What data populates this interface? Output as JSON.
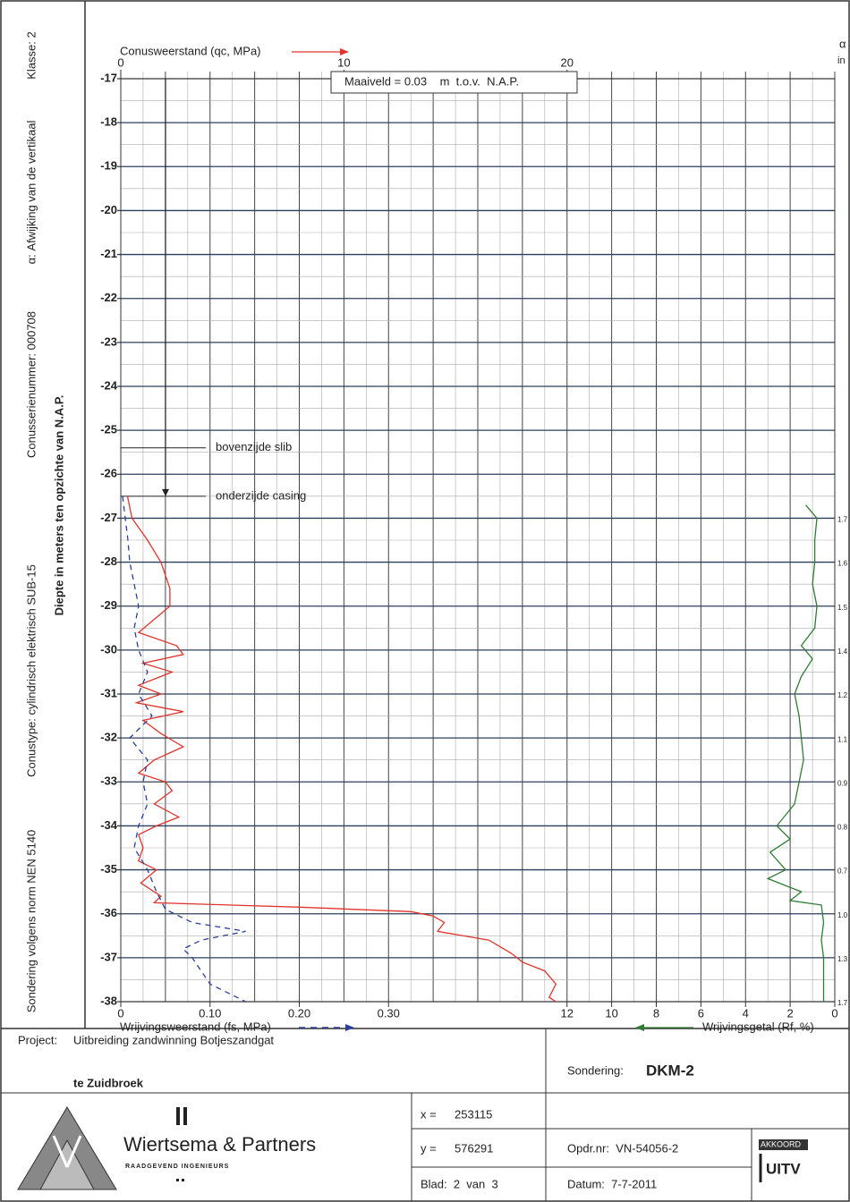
{
  "side_labels": [
    "Sondering volgens norm NEN 5140",
    "Conustype: cylindrisch elektrisch SUB-15",
    "Conusserienummer: 000708",
    "α: Afwijking van de vertikaal",
    "Klasse: 2",
    "Diepte in meters ten opzichte van N.A.P."
  ],
  "chart_data": {
    "type": "cpt",
    "ylim": [
      -17,
      -38
    ],
    "yticks": [
      -17,
      -18,
      -19,
      -20,
      -21,
      -22,
      -23,
      -24,
      -25,
      -26,
      -27,
      -28,
      -29,
      -30,
      -31,
      -32,
      -33,
      -34,
      -35,
      -36,
      -37,
      -38
    ],
    "maaiveld": "Maaiveld = 0.03    m  t.o.v.  N.A.P.",
    "annotations": [
      {
        "text": "bovenzijde slib",
        "depth": -25.4
      },
      {
        "text": "onderzijde casing",
        "depth": -26.5
      }
    ],
    "qc": {
      "label": "Conusweerstand (qc, MPa)",
      "xlim": [
        0,
        32
      ],
      "xticks": [
        0,
        10,
        20
      ],
      "color": "#e0342c",
      "depth": [
        -26.5,
        -27,
        -27.5,
        -28,
        -28.3,
        -28.6,
        -29,
        -29.3,
        -29.6,
        -29.9,
        -30.1,
        -30.3,
        -30.5,
        -30.8,
        -31,
        -31.2,
        -31.4,
        -31.6,
        -31.9,
        -32.2,
        -32.5,
        -32.8,
        -33,
        -33.2,
        -33.5,
        -33.8,
        -34,
        -34.2,
        -34.5,
        -34.8,
        -35,
        -35.3,
        -35.6,
        -35.75,
        -35.85,
        -35.95,
        -36.05,
        -36.2,
        -36.4,
        -36.6,
        -36.9,
        -37.1,
        -37.3,
        -37.6,
        -37.9,
        -38
      ],
      "values": [
        0.3,
        0.5,
        1.2,
        1.8,
        2.0,
        2.2,
        2.2,
        1.5,
        0.8,
        2.5,
        2.8,
        1.0,
        2.3,
        0.8,
        1.8,
        0.7,
        2.8,
        1.0,
        1.8,
        2.8,
        1.5,
        0.8,
        2.0,
        2.3,
        1.5,
        2.6,
        1.6,
        0.8,
        1.0,
        0.8,
        1.6,
        0.9,
        1.8,
        1.5,
        8.0,
        13.0,
        14.0,
        14.5,
        14.2,
        16.5,
        17.5,
        18.0,
        19.0,
        19.5,
        19.2,
        19.5
      ]
    },
    "fs": {
      "label": "Wrijvingsweerstand (fs, MPa)",
      "xlim": [
        0,
        0.8
      ],
      "xticks": [
        0,
        {
          "value": 0.1,
          "label": "0.10"
        },
        {
          "value": 0.2,
          "label": "0.20"
        },
        {
          "value": 0.3,
          "label": "0.30"
        }
      ],
      "color": "#2a3f9e",
      "depth": [
        -26.5,
        -27,
        -27.5,
        -28,
        -28.5,
        -29,
        -29.5,
        -30,
        -30.5,
        -31,
        -31.5,
        -32,
        -32.5,
        -33,
        -33.5,
        -34,
        -34.5,
        -35,
        -35.5,
        -35.9,
        -36.2,
        -36.4,
        -36.6,
        -36.8,
        -37,
        -37.3,
        -37.6,
        -37.9,
        -38
      ],
      "values": [
        0.002,
        0.005,
        0.008,
        0.01,
        0.015,
        0.02,
        0.015,
        0.02,
        0.03,
        0.02,
        0.035,
        0.01,
        0.03,
        0.025,
        0.03,
        0.02,
        0.015,
        0.03,
        0.04,
        0.05,
        0.08,
        0.14,
        0.09,
        0.07,
        0.08,
        0.09,
        0.1,
        0.13,
        0.14
      ]
    },
    "rf": {
      "label": "Wrijvingsgetal (Rf, %)",
      "xlim": [
        32,
        0
      ],
      "xticks": [
        12,
        10,
        8,
        6,
        4,
        2,
        0
      ],
      "color": "#2e7d32",
      "depth": [
        -26.7,
        -27,
        -27.5,
        -28,
        -28.5,
        -29,
        -29.5,
        -29.9,
        -30.2,
        -30.6,
        -31,
        -31.5,
        -32,
        -32.5,
        -33,
        -33.5,
        -34,
        -34.3,
        -34.6,
        -35,
        -35.2,
        -35.5,
        -35.7,
        -35.8,
        -36.2,
        -36.6,
        -37,
        -37.5,
        -38
      ],
      "values": [
        1.3,
        0.8,
        0.9,
        0.9,
        1.0,
        0.8,
        0.9,
        1.5,
        1.0,
        1.5,
        1.8,
        1.6,
        1.5,
        1.4,
        1.6,
        1.8,
        2.6,
        2.0,
        2.9,
        2.2,
        3.0,
        1.5,
        2.0,
        0.6,
        0.5,
        0.6,
        0.5,
        0.5,
        0.5
      ]
    },
    "alpha": {
      "label": "α",
      "unit": "in",
      "depths": [
        -27,
        -28,
        -29,
        -30,
        -31,
        -32,
        -33,
        -34,
        -35,
        -36,
        -37,
        -38
      ],
      "values": [
        1.7,
        1.6,
        1.5,
        1.4,
        1.2,
        1.1,
        0.9,
        0.8,
        0.7,
        1.0,
        1.3,
        1.7
      ],
      "value_labels": [
        "1.7",
        "1.6",
        "1.5",
        "1.4",
        "1.2",
        "1.1",
        "0.9",
        "0.8",
        "0.7",
        "1.0",
        "1.3",
        "1.7"
      ]
    }
  },
  "footer": {
    "project_label": "Project:",
    "project_line1": "Uitbreiding zandwinning Botjeszandgat",
    "project_line2": "te Zuidbroek",
    "sondering_label": "Sondering:",
    "sondering": "DKM-2",
    "x_label": "x =",
    "x": "253115",
    "y_label": "y =",
    "y": "576291",
    "blad": "Blad:  2  van  3",
    "opdr": "Opdr.nr:  VN-54056-2",
    "datum": "Datum:  7-7-2011",
    "company": "Wiertsema & Partners",
    "company_sub": "RAADGEVEND INGENIEURS",
    "stamp_top": "AKKOORD",
    "stamp": "UITV"
  }
}
